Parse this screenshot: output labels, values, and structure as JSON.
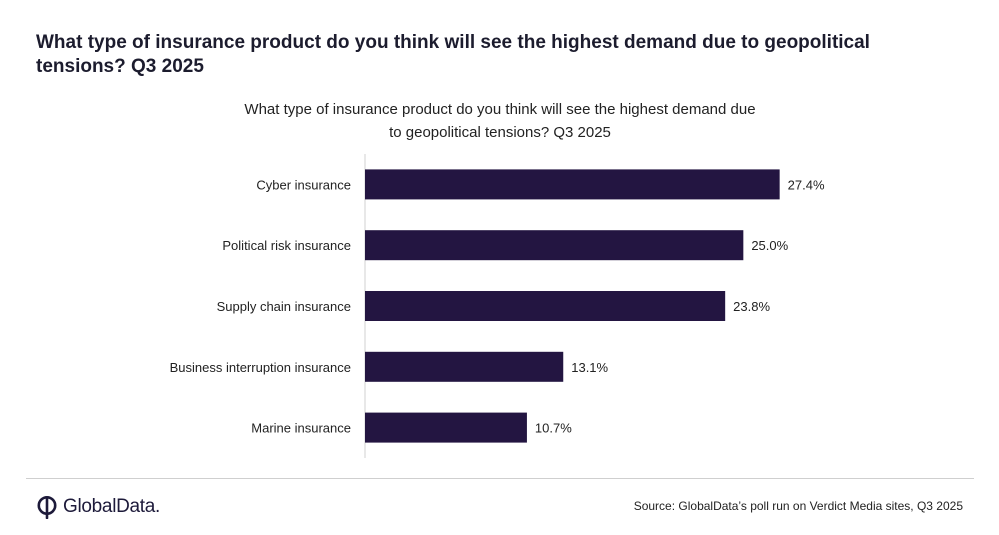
{
  "header": {
    "title": "What type of insurance product do you think will see the highest demand due to geopolitical tensions? Q3 2025"
  },
  "chart_data": {
    "type": "bar",
    "orientation": "horizontal",
    "title_lines": [
      "What type of insurance product do you think will see the highest demand due",
      "to geopolitical tensions? Q3 2025"
    ],
    "categories": [
      "Cyber insurance",
      "Political risk insurance",
      "Supply chain insurance",
      "Business interruption insurance",
      "Marine insurance"
    ],
    "values": [
      27.4,
      25.0,
      23.8,
      13.1,
      10.7
    ],
    "labels": [
      "27.4%",
      "25.0%",
      "23.8%",
      "13.1%",
      "10.7%"
    ],
    "xlim": [
      0,
      30
    ],
    "xlabel": "",
    "ylabel": "",
    "grid": false,
    "bar_color": "#231541"
  },
  "footer": {
    "logo_text": "GlobalData.",
    "source": "Source: GlobalData’s poll run on Verdict Media sites, Q3 2025"
  }
}
